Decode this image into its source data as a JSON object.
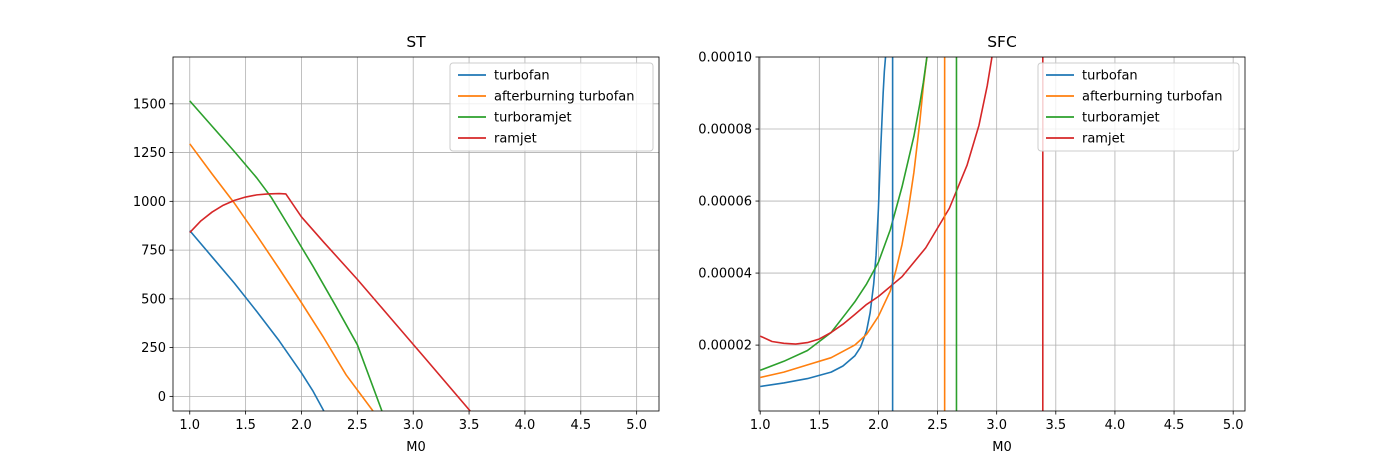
{
  "chart_data": [
    {
      "type": "line",
      "title": "ST",
      "xlabel": "M0",
      "ylabel": "",
      "xlim": [
        0.85,
        5.2
      ],
      "ylim": [
        -75,
        1740
      ],
      "xticks": [
        1.0,
        1.5,
        2.0,
        2.5,
        3.0,
        3.5,
        4.0,
        4.5,
        5.0
      ],
      "xtick_labels": [
        "1.0",
        "1.5",
        "2.0",
        "2.5",
        "3.0",
        "3.5",
        "4.0",
        "4.5",
        "5.0"
      ],
      "yticks": [
        0,
        250,
        500,
        750,
        1000,
        1250,
        1500
      ],
      "ytick_labels": [
        "0",
        "250",
        "500",
        "750",
        "1000",
        "1250",
        "1500"
      ],
      "grid": true,
      "legend_position": "upper right",
      "series": [
        {
          "name": "turbofan",
          "color": "#1f77b4",
          "x": [
            1.0,
            1.2,
            1.4,
            1.6,
            1.8,
            2.0,
            2.1,
            2.2
          ],
          "y": [
            850,
            715,
            580,
            435,
            285,
            120,
            30,
            -75
          ]
        },
        {
          "name": "afterburning turbofan",
          "color": "#ff7f0e",
          "x": [
            1.0,
            1.2,
            1.4,
            1.6,
            1.8,
            2.0,
            2.2,
            2.4,
            2.64
          ],
          "y": [
            1295,
            1140,
            990,
            825,
            655,
            480,
            300,
            110,
            -75
          ]
        },
        {
          "name": "turboramjet",
          "color": "#2ca02c",
          "x": [
            1.0,
            1.2,
            1.4,
            1.6,
            1.73,
            1.9,
            2.1,
            2.3,
            2.5,
            2.72
          ],
          "y": [
            1515,
            1385,
            1255,
            1120,
            1020,
            860,
            670,
            470,
            265,
            -75
          ]
        },
        {
          "name": "ramjet",
          "color": "#d62728",
          "x": [
            1.0,
            1.1,
            1.2,
            1.3,
            1.4,
            1.5,
            1.6,
            1.7,
            1.8,
            1.86,
            2.0,
            2.2,
            2.5,
            2.8,
            3.1,
            3.51
          ],
          "y": [
            840,
            900,
            945,
            980,
            1005,
            1022,
            1033,
            1038,
            1040,
            1038,
            920,
            790,
            600,
            400,
            200,
            -75
          ]
        }
      ]
    },
    {
      "type": "line",
      "title": "SFC",
      "xlabel": "M0",
      "ylabel": "",
      "xlim": [
        0.99,
        5.1
      ],
      "ylim": [
        1.7e-06,
        0.0001
      ],
      "xticks": [
        1.0,
        1.5,
        2.0,
        2.5,
        3.0,
        3.5,
        4.0,
        4.5,
        5.0
      ],
      "xtick_labels": [
        "1.0",
        "1.5",
        "2.0",
        "2.5",
        "3.0",
        "3.5",
        "4.0",
        "4.5",
        "5.0"
      ],
      "yticks": [
        2e-05,
        4e-05,
        6e-05,
        8e-05,
        0.0001
      ],
      "ytick_labels": [
        "0.00002",
        "0.00004",
        "0.00006",
        "0.00008",
        "0.00010"
      ],
      "grid": true,
      "legend_position": "upper right",
      "series": [
        {
          "name": "turbofan",
          "color": "#1f77b4",
          "x": [
            1.0,
            1.2,
            1.4,
            1.6,
            1.7,
            1.8,
            1.85,
            1.9,
            1.93,
            1.96,
            1.98,
            2.0,
            2.02,
            2.04,
            2.05,
            2.06
          ],
          "y": [
            8.5e-06,
            9.5e-06,
            1.07e-05,
            1.25e-05,
            1.42e-05,
            1.7e-05,
            1.95e-05,
            2.4e-05,
            2.9e-05,
            3.7e-05,
            4.5e-05,
            5.8e-05,
            7.5e-05,
            9e-05,
            9.6e-05,
            0.0001
          ]
        },
        {
          "name": "afterburning turbofan",
          "color": "#ff7f0e",
          "x": [
            1.0,
            1.2,
            1.4,
            1.6,
            1.8,
            1.9,
            2.0,
            2.1,
            2.15,
            2.2,
            2.25,
            2.3,
            2.35,
            2.38,
            2.41
          ],
          "y": [
            1.1e-05,
            1.25e-05,
            1.45e-05,
            1.65e-05,
            2e-05,
            2.3e-05,
            2.8e-05,
            3.5e-05,
            4.1e-05,
            4.8e-05,
            5.7e-05,
            6.8e-05,
            8.2e-05,
            9.2e-05,
            0.0001
          ]
        },
        {
          "name": "turboramjet",
          "color": "#2ca02c",
          "x": [
            1.0,
            1.2,
            1.4,
            1.6,
            1.73,
            1.8,
            1.9,
            2.0,
            2.1,
            2.2,
            2.3,
            2.35,
            2.38,
            2.41
          ],
          "y": [
            1.3e-05,
            1.55e-05,
            1.85e-05,
            2.35e-05,
            2.9e-05,
            3.2e-05,
            3.7e-05,
            4.3e-05,
            5.2e-05,
            6.4e-05,
            7.8e-05,
            8.7e-05,
            9.3e-05,
            0.0001
          ]
        },
        {
          "name": "ramjet",
          "color": "#d62728",
          "x": [
            1.0,
            1.1,
            1.2,
            1.3,
            1.4,
            1.5,
            1.6,
            1.7,
            1.8,
            1.9,
            2.0,
            2.2,
            2.4,
            2.6,
            2.75,
            2.85,
            2.92,
            2.96
          ],
          "y": [
            2.25e-05,
            2.1e-05,
            2.05e-05,
            2.03e-05,
            2.07e-05,
            2.17e-05,
            2.35e-05,
            2.58e-05,
            2.85e-05,
            3.13e-05,
            3.35e-05,
            3.9e-05,
            4.7e-05,
            5.8e-05,
            7e-05,
            8.1e-05,
            9.2e-05,
            0.0001
          ]
        }
      ],
      "verticals": [
        {
          "series": "turbofan",
          "color": "#1f77b4",
          "x": 2.12
        },
        {
          "series": "afterburning turbofan",
          "color": "#ff7f0e",
          "x": 2.56
        },
        {
          "series": "turboramjet",
          "color": "#2ca02c",
          "x": 2.66
        },
        {
          "series": "ramjet",
          "color": "#d62728",
          "x": 3.39
        }
      ]
    }
  ]
}
